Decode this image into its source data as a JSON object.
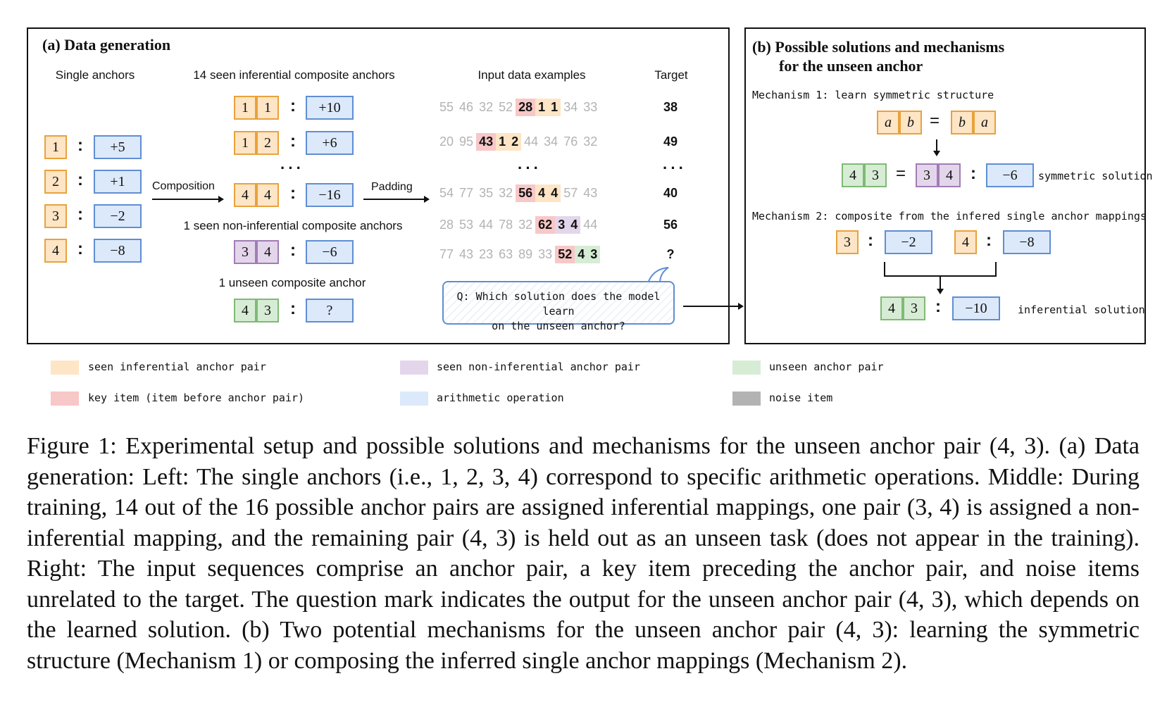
{
  "panel_a": {
    "title": "(a) Data generation",
    "headers": {
      "single": "Single anchors",
      "seen": "14 seen inferential composite anchors",
      "inputs": "Input data examples",
      "target": "Target"
    },
    "single_anchors": [
      {
        "anchor": "1",
        "op": "+5"
      },
      {
        "anchor": "2",
        "op": "+1"
      },
      {
        "anchor": "3",
        "op": "−2"
      },
      {
        "anchor": "4",
        "op": "−8"
      }
    ],
    "composition_label": "Composition",
    "padding_label": "Padding",
    "seen_pairs": [
      {
        "a": "1",
        "b": "1",
        "op": "+10"
      },
      {
        "a": "1",
        "b": "2",
        "op": "+6"
      },
      {
        "a": "4",
        "b": "4",
        "op": "−16"
      }
    ],
    "ellipsis": "···",
    "non_inferential_label": "1 seen non-inferential composite anchors",
    "non_inferential_pair": {
      "a": "3",
      "b": "4",
      "op": "−6"
    },
    "unseen_label": "1 unseen composite anchor",
    "unseen_pair": {
      "a": "4",
      "b": "3",
      "op": "?"
    },
    "examples": [
      {
        "noise": [
          "55",
          "46",
          "32",
          "52"
        ],
        "key": "28",
        "a": "1",
        "b": "1",
        "tail": [
          "34",
          "33"
        ],
        "target": "38",
        "type": "orange"
      },
      {
        "noise": [
          "20",
          "95"
        ],
        "key": "43",
        "a": "1",
        "b": "2",
        "tail": [
          "44",
          "34",
          "76",
          "32"
        ],
        "target": "49",
        "type": "orange"
      },
      {
        "noise": [
          "54",
          "77",
          "35",
          "32"
        ],
        "key": "56",
        "a": "4",
        "b": "4",
        "tail": [
          "57",
          "43"
        ],
        "target": "40",
        "type": "orange"
      },
      {
        "noise": [
          "28",
          "53",
          "44",
          "78",
          "32"
        ],
        "key": "62",
        "a": "3",
        "b": "4",
        "tail": [
          "44"
        ],
        "target": "56",
        "type": "purple"
      },
      {
        "noise": [
          "77",
          "43",
          "23",
          "63",
          "89",
          "33"
        ],
        "key": "52",
        "a": "4",
        "b": "3",
        "tail": [],
        "target": "?",
        "type": "green"
      }
    ],
    "question_line1": "Q: Which solution does the model learn",
    "question_line2": "on the unseen anchor?"
  },
  "panel_b": {
    "title_line1": "(b) Possible solutions and mechanisms",
    "title_line2": "for the unseen anchor",
    "mech1_label": "Mechanism 1: learn symmetric structure",
    "mech1_left": {
      "a": "a",
      "b": "b"
    },
    "mech1_right": {
      "a": "b",
      "b": "a"
    },
    "mech1_eq": {
      "left": {
        "a": "4",
        "b": "3"
      },
      "right": {
        "a": "3",
        "b": "4"
      },
      "op": "−6"
    },
    "symmetric_solution": "symmetric solution",
    "mech2_label": "Mechanism 2: composite from the infered single anchor mappings",
    "mech2_left": {
      "anchor": "3",
      "op": "−2"
    },
    "mech2_right": {
      "anchor": "4",
      "op": "−8"
    },
    "mech2_result": {
      "a": "4",
      "b": "3",
      "op": "−10"
    },
    "inferential_solution": "inferential solution",
    "equals": "="
  },
  "legend": [
    {
      "label": "seen inferential anchor pair",
      "color": "#fde5c6"
    },
    {
      "label": "seen non-inferential anchor pair",
      "color": "#e3d6ea"
    },
    {
      "label": "unseen anchor pair",
      "color": "#d7ecd5"
    },
    {
      "label": "key item (item before anchor pair)",
      "color": "#f8c7c7"
    },
    {
      "label": "arithmetic operation",
      "color": "#dce9fb"
    },
    {
      "label": "noise item",
      "color": "#b3b3b3"
    }
  ],
  "caption": "Figure 1: Experimental setup and possible solutions and mechanisms for the unseen anchor pair (4, 3). (a) Data generation: Left: The single anchors (i.e., 1, 2, 3, 4) correspond to specific arithmetic operations. Middle: During training, 14 out of the 16 possible anchor pairs are assigned inferential mappings, one pair (3, 4) is assigned a non-inferential mapping, and the remaining pair (4, 3) is held out as an unseen task (does not appear in the training). Right: The input sequences comprise an anchor pair, a key item preceding the anchor pair, and noise items unrelated to the target. The question mark indicates the output for the unseen anchor pair (4, 3), which depends on the learned solution. (b) Two potential mechanisms for the unseen anchor pair (4, 3): learning the symmetric structure (Mechanism 1) or composing the inferred single anchor mappings (Mechanism 2)."
}
